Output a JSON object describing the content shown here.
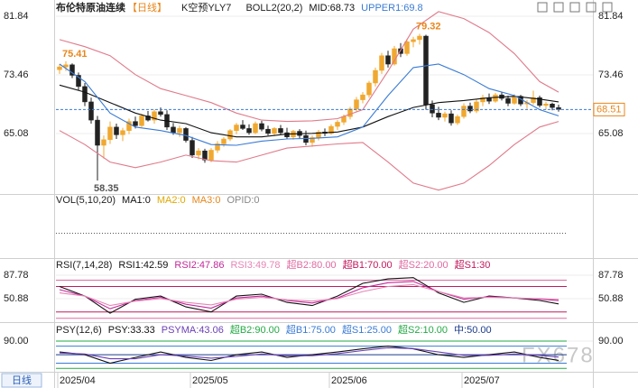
{
  "header": {
    "title": "布伦特原油连续",
    "period": "【日线】",
    "signal": "K空预YLY7"
  },
  "tab": "日线",
  "watermark": "FX678",
  "chart_data": [
    {
      "type": "candlestick",
      "indicator": "BOLL2(20,2)",
      "categories": [
        "2025/04",
        null,
        null,
        null,
        null,
        null,
        null,
        null,
        null,
        null,
        null,
        null,
        null,
        null,
        null,
        null,
        null,
        null,
        null,
        null,
        null,
        "2025/05",
        null,
        null,
        null,
        null,
        null,
        null,
        null,
        null,
        null,
        null,
        null,
        null,
        null,
        null,
        null,
        null,
        null,
        null,
        null,
        null,
        null,
        "2025/06",
        null,
        null,
        null,
        null,
        null,
        null,
        null,
        null,
        null,
        null,
        null,
        null,
        null,
        null,
        null,
        null,
        null,
        null,
        null,
        null,
        "2025/07",
        null,
        null,
        null,
        null,
        null,
        null,
        null,
        null,
        null,
        null,
        null,
        null,
        null,
        null,
        null
      ],
      "open": [
        74.2,
        74.6,
        74.9,
        73.4,
        71.8,
        69.6,
        67.0,
        63.4,
        64.2,
        66.0,
        64.9,
        65.5,
        66.8,
        66.2,
        67.6,
        67.0,
        68.2,
        67.8,
        66.0,
        65.2,
        65.8,
        64.1,
        62.0,
        62.6,
        61.3,
        62.7,
        63.6,
        64.3,
        65.5,
        66.3,
        65.8,
        65.2,
        66.5,
        65.7,
        65.1,
        65.8,
        65.2,
        64.6,
        65.4,
        64.8,
        63.8,
        64.5,
        65.3,
        65.1,
        66.1,
        66.7,
        67.5,
        68.6,
        69.9,
        70.6,
        72.3,
        74.1,
        76.2,
        75.0,
        77.2,
        76.5,
        78.2,
        78.5,
        79.0,
        69.2,
        68.0,
        67.4,
        67.9,
        66.6,
        67.5,
        69.0,
        68.3,
        69.6,
        70.2,
        69.7,
        70.6,
        70.1,
        69.4,
        70.4,
        69.3,
        69.5,
        70.2,
        69.1,
        69.3,
        68.8
      ],
      "high": [
        75.0,
        75.41,
        75.1,
        73.8,
        72.3,
        70.2,
        67.6,
        64.8,
        66.8,
        66.5,
        65.9,
        67.2,
        67.5,
        67.9,
        68.3,
        68.5,
        68.8,
        68.4,
        66.6,
        66.2,
        66.0,
        64.6,
        63.0,
        62.9,
        63.0,
        64.0,
        64.6,
        65.7,
        66.6,
        67.0,
        66.4,
        66.8,
        66.9,
        66.2,
        66.0,
        66.3,
        65.9,
        65.6,
        65.7,
        65.5,
        64.8,
        65.6,
        65.8,
        66.4,
        67.0,
        67.8,
        68.9,
        70.3,
        71.0,
        72.6,
        74.5,
        76.6,
        76.9,
        77.6,
        78.0,
        78.6,
        78.9,
        79.32,
        79.2,
        69.8,
        68.9,
        68.2,
        68.4,
        67.8,
        69.4,
        69.5,
        70.0,
        70.6,
        70.8,
        70.9,
        71.0,
        70.5,
        70.7,
        70.6,
        69.9,
        71.2,
        70.5,
        69.6,
        69.5,
        69.2
      ],
      "low": [
        73.6,
        74.0,
        73.0,
        71.2,
        69.0,
        66.5,
        58.35,
        61.5,
        63.6,
        64.3,
        64.0,
        65.0,
        65.8,
        66.0,
        66.8,
        66.5,
        67.5,
        65.6,
        64.9,
        64.6,
        63.8,
        61.6,
        61.4,
        60.9,
        61.0,
        62.3,
        63.2,
        64.0,
        65.0,
        65.6,
        64.9,
        65.0,
        65.4,
        64.8,
        64.7,
        64.9,
        64.3,
        64.2,
        64.4,
        63.4,
        63.2,
        64.1,
        64.7,
        64.9,
        65.6,
        66.3,
        67.1,
        68.2,
        69.4,
        70.2,
        71.8,
        73.6,
        74.5,
        74.8,
        76.0,
        76.2,
        77.4,
        77.8,
        68.5,
        67.4,
        67.0,
        66.8,
        66.2,
        66.3,
        67.2,
        68.0,
        68.0,
        69.0,
        69.3,
        69.5,
        69.8,
        69.0,
        69.2,
        69.0,
        68.6,
        69.2,
        68.8,
        68.5,
        68.4,
        68.2
      ],
      "close": [
        74.6,
        74.9,
        73.4,
        71.8,
        69.6,
        67.0,
        63.4,
        64.2,
        66.0,
        64.9,
        65.5,
        66.8,
        66.2,
        67.6,
        67.0,
        68.2,
        67.8,
        66.0,
        65.2,
        65.8,
        64.1,
        62.0,
        62.6,
        61.3,
        62.7,
        63.6,
        64.3,
        65.5,
        66.3,
        65.8,
        65.2,
        66.5,
        65.7,
        65.1,
        65.8,
        65.2,
        64.6,
        65.4,
        64.8,
        63.8,
        64.5,
        65.3,
        65.1,
        66.1,
        66.7,
        67.5,
        68.6,
        69.9,
        70.6,
        72.3,
        74.1,
        76.2,
        75.0,
        77.2,
        76.5,
        78.2,
        78.5,
        79.0,
        69.2,
        68.0,
        67.4,
        67.9,
        66.6,
        67.5,
        69.0,
        68.3,
        69.6,
        70.2,
        69.7,
        70.6,
        70.1,
        69.4,
        70.4,
        69.3,
        69.5,
        70.2,
        69.1,
        69.3,
        68.8,
        68.51
      ],
      "up_color": "#f0a830",
      "down_color": "#222222",
      "x": [
        0,
        4,
        8,
        12,
        16,
        20,
        24,
        28,
        32,
        36,
        40,
        44,
        48,
        52,
        56,
        60,
        64,
        68,
        72,
        76,
        79
      ],
      "series": [
        {
          "name": "MID:68.73",
          "color": "#111111",
          "values": [
            72.0,
            71.0,
            69.5,
            68.0,
            67.0,
            66.5,
            65.2,
            64.6,
            64.6,
            65.0,
            65.1,
            65.3,
            66.0,
            67.5,
            68.8,
            69.5,
            69.8,
            70.2,
            70.4,
            70.0,
            69.6
          ]
        },
        {
          "name": "UPPER1:69.8",
          "color": "#3a7bd5",
          "values": [
            75.0,
            72.5,
            68.0,
            66.0,
            65.5,
            64.8,
            63.5,
            63.4,
            64.0,
            64.3,
            64.4,
            64.6,
            66.0,
            70.5,
            74.5,
            75.0,
            73.5,
            71.5,
            70.5,
            68.5,
            67.6
          ]
        },
        {
          "color": "#e07a8a",
          "values": [
            78.5,
            77.5,
            76.2,
            73.5,
            71.5,
            70.5,
            69.5,
            68.0,
            67.0,
            66.8,
            66.9,
            67.2,
            68.5,
            74.0,
            80.0,
            82.5,
            81.5,
            79.5,
            76.5,
            72.5,
            71.0
          ]
        },
        {
          "color": "#e07a8a",
          "values": [
            65.5,
            63.5,
            61.0,
            60.2,
            61.0,
            62.0,
            61.2,
            61.0,
            62.0,
            63.0,
            63.3,
            63.6,
            63.8,
            61.0,
            58.0,
            57.0,
            58.0,
            60.5,
            63.5,
            66.0,
            66.8
          ]
        }
      ],
      "annotations": [
        {
          "x": 1,
          "value": 75.41,
          "position": "above",
          "color": "#e8861a"
        },
        {
          "x": 57,
          "value": 79.32,
          "position": "above",
          "color": "#e8861a"
        },
        {
          "x": 6,
          "value": 58.35,
          "position": "below",
          "color": "#555555"
        }
      ],
      "last": 68.51,
      "ylim": [
        56.44,
        82.87
      ],
      "yticks": [
        81.84,
        73.46,
        65.08
      ]
    },
    {
      "type": "volume",
      "indicator": "VOL(5,10,20)",
      "legend": [
        {
          "label": "MA1:0",
          "color": "#111111"
        },
        {
          "label": "MA2:0",
          "color": "#e0a800"
        },
        {
          "label": "MA3:0",
          "color": "#e8861a"
        },
        {
          "label": "OPID:0",
          "color": "#888888"
        }
      ]
    },
    {
      "type": "line",
      "indicator": "RSI(7,14,28)",
      "x": [
        0,
        4,
        8,
        12,
        16,
        20,
        24,
        28,
        32,
        36,
        40,
        44,
        48,
        52,
        56,
        60,
        64,
        68,
        72,
        76,
        79
      ],
      "series": [
        {
          "name": "RSI1:42.59",
          "color": "#111111",
          "values": [
            70,
            55,
            28,
            50,
            55,
            38,
            30,
            55,
            58,
            45,
            40,
            55,
            75,
            82,
            84,
            60,
            45,
            55,
            52,
            48,
            42.59
          ]
        },
        {
          "name": "RSI2:47.86",
          "color": "#c2289a",
          "values": [
            65,
            55,
            35,
            48,
            53,
            42,
            36,
            52,
            55,
            48,
            44,
            52,
            68,
            76,
            78,
            62,
            50,
            54,
            52,
            50,
            47.86
          ]
        },
        {
          "name": "RSI3:49.78",
          "color": "#e585b5",
          "values": [
            60,
            55,
            40,
            47,
            51,
            45,
            41,
            50,
            53,
            49,
            47,
            51,
            62,
            70,
            73,
            62,
            52,
            53,
            52,
            51,
            49.78
          ]
        }
      ],
      "levels": [
        {
          "value": 80,
          "label": "超B2:80.00",
          "color": "#e06aa0"
        },
        {
          "value": 70,
          "label": "超B1:70.00",
          "color": "#c2185b"
        },
        {
          "value": 20,
          "label": "超S2:20.00",
          "color": "#e06aa0"
        },
        {
          "value": 30,
          "label": "超S1:30",
          "color": "#c2185b"
        }
      ],
      "ylim": [
        18.2,
        97.7
      ],
      "yticks": [
        87.78,
        50.88
      ]
    },
    {
      "type": "line",
      "indicator": "PSY(12,6)",
      "x": [
        0,
        4,
        8,
        12,
        16,
        20,
        24,
        28,
        32,
        36,
        40,
        44,
        48,
        52,
        56,
        60,
        64,
        68,
        72,
        76,
        79
      ],
      "series": [
        {
          "name": "PSY:33.33",
          "color": "#111111",
          "values": [
            58,
            50,
            25,
            42,
            58,
            42,
            33,
            50,
            58,
            42,
            50,
            58,
            67,
            75,
            67,
            50,
            42,
            50,
            58,
            42,
            33.33
          ]
        },
        {
          "name": "PSYMA:43.06",
          "color": "#6a3fb5",
          "values": [
            55,
            52,
            38,
            38,
            50,
            46,
            40,
            45,
            52,
            47,
            47,
            53,
            62,
            70,
            68,
            58,
            48,
            48,
            52,
            48,
            43.06
          ]
        }
      ],
      "levels": [
        {
          "value": 90,
          "label": "超B2:90.00",
          "color": "#22aa44"
        },
        {
          "value": 75,
          "label": "超B1:75.00",
          "color": "#3a7bd5"
        },
        {
          "value": 25,
          "label": "超S1:25.00",
          "color": "#3a7bd5"
        },
        {
          "value": 10,
          "label": "超S2:10.00",
          "color": "#22aa44"
        },
        {
          "value": 50,
          "label": "中:50.00",
          "color": "#1a3a8a"
        }
      ],
      "ylim": [
        0,
        111
      ],
      "yticks": [
        {
          "value": 90,
          "label": "90.00"
        }
      ]
    }
  ]
}
